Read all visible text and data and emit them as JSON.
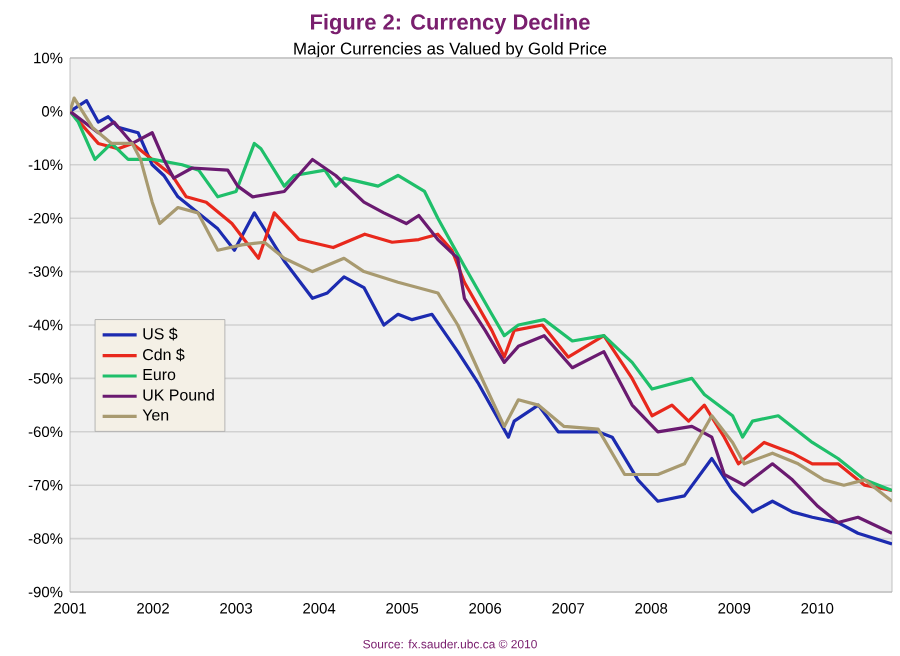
{
  "chart_data": {
    "type": "line",
    "title": "Figure 2: Currency Decline",
    "subtitle": "Major Currencies as Valued by Gold Price",
    "annotations": [
      "Source: fx.sauder.ubc.ca © 2010"
    ],
    "xlim": [
      2001,
      2010.9
    ],
    "xticks": [
      2001,
      2002,
      2003,
      2004,
      2005,
      2006,
      2007,
      2008,
      2009,
      2010
    ],
    "ylim": [
      -90,
      10
    ],
    "yticks": [
      {
        "value": -90,
        "label": "-90%"
      },
      {
        "value": -80,
        "label": "-80%"
      },
      {
        "value": -70,
        "label": "-70%"
      },
      {
        "value": -60,
        "label": "-60%"
      },
      {
        "value": -50,
        "label": "-50%"
      },
      {
        "value": -40,
        "label": "-40%"
      },
      {
        "value": -30,
        "label": "-30%"
      },
      {
        "value": -20,
        "label": "-20%"
      },
      {
        "value": -10,
        "label": "-10%"
      },
      {
        "value": 0,
        "label": "0%"
      },
      {
        "value": 10,
        "label": "10%"
      }
    ],
    "grid": "y",
    "legend": "left",
    "marker": "none",
    "line_style": "solid",
    "series": [
      {
        "name": "US $",
        "color": "#1c2bb0",
        "x": [
          2001.0,
          2001.2,
          2001.34,
          2001.46,
          2001.58,
          2001.82,
          2001.99,
          2002.13,
          2002.3,
          2002.54,
          2002.78,
          2002.98,
          2003.22,
          2003.58,
          2003.92,
          2004.1,
          2004.3,
          2004.54,
          2004.78,
          2004.95,
          2005.12,
          2005.36,
          2005.67,
          2005.92,
          2006.28,
          2006.35,
          2006.64,
          2006.88,
          2007.36,
          2007.53,
          2007.84,
          2008.08,
          2008.4,
          2008.73,
          2008.98,
          2009.22,
          2009.46,
          2009.7,
          2009.94,
          2010.25,
          2010.49,
          2010.9
        ],
        "values": [
          0,
          2,
          -2,
          -1,
          -3,
          -4,
          -10,
          -12,
          -16,
          -19,
          -22,
          -26,
          -19,
          -28,
          -35,
          -34,
          -31,
          -33,
          -40,
          -38,
          -39,
          -38,
          -45,
          -51,
          -61,
          -58,
          -55,
          -60,
          -60,
          -61,
          -69,
          -73,
          -72,
          -65,
          -71,
          -75,
          -73,
          -75,
          -76,
          -77,
          -79,
          -81
        ]
      },
      {
        "name": "Cdn $",
        "color": "#e8281c",
        "x": [
          2001.0,
          2001.34,
          2001.58,
          2001.75,
          2001.99,
          2002.23,
          2002.4,
          2002.64,
          2002.95,
          2003.27,
          2003.46,
          2003.76,
          2004.17,
          2004.55,
          2004.88,
          2005.2,
          2005.43,
          2005.6,
          2005.75,
          2006.08,
          2006.23,
          2006.35,
          2006.69,
          2007.0,
          2007.43,
          2007.77,
          2008.01,
          2008.25,
          2008.45,
          2008.64,
          2008.88,
          2009.05,
          2009.36,
          2009.7,
          2009.94,
          2010.25,
          2010.57,
          2010.9
        ],
        "values": [
          0,
          -6,
          -7,
          -6,
          -9,
          -12,
          -16,
          -17,
          -21,
          -27.5,
          -19,
          -24,
          -25.5,
          -23,
          -24.5,
          -24,
          -23,
          -26,
          -32,
          -41,
          -46,
          -41,
          -40,
          -46,
          -42,
          -50,
          -57,
          -55,
          -58,
          -55,
          -61,
          -66,
          -62,
          -64,
          -66,
          -66,
          -70,
          -71
        ]
      },
      {
        "name": "Euro",
        "color": "#1fbf6a",
        "x": [
          2001.0,
          2001.1,
          2001.3,
          2001.5,
          2001.7,
          2002.0,
          2002.35,
          2002.55,
          2002.78,
          2003.0,
          2003.22,
          2003.3,
          2003.58,
          2003.7,
          2004.07,
          2004.2,
          2004.3,
          2004.71,
          2004.95,
          2005.27,
          2005.43,
          2005.75,
          2006.08,
          2006.23,
          2006.4,
          2006.71,
          2007.05,
          2007.43,
          2007.77,
          2008.01,
          2008.49,
          2008.64,
          2008.98,
          2009.1,
          2009.22,
          2009.53,
          2009.94,
          2010.25,
          2010.57,
          2010.9
        ],
        "values": [
          0,
          -2,
          -9,
          -6,
          -9,
          -9,
          -10,
          -11,
          -16,
          -15,
          -6,
          -7,
          -14,
          -12,
          -11,
          -14,
          -12.5,
          -14,
          -12,
          -15,
          -20,
          -29,
          -38,
          -42,
          -40,
          -39,
          -43,
          -42,
          -47,
          -52,
          -50,
          -53,
          -57,
          -61,
          -58,
          -57,
          -62,
          -65,
          -69,
          -71
        ]
      },
      {
        "name": "UK Pound",
        "color": "#6a1a70",
        "x": [
          2001.0,
          2001.34,
          2001.53,
          2001.75,
          2001.99,
          2002.13,
          2002.25,
          2002.47,
          2002.9,
          2003.02,
          2003.2,
          2003.58,
          2003.92,
          2004.2,
          2004.54,
          2004.78,
          2005.05,
          2005.2,
          2005.43,
          2005.67,
          2005.75,
          2006.0,
          2006.23,
          2006.4,
          2006.71,
          2007.05,
          2007.43,
          2007.77,
          2008.08,
          2008.49,
          2008.73,
          2008.88,
          2009.12,
          2009.46,
          2009.7,
          2010.01,
          2010.25,
          2010.49,
          2010.9
        ],
        "values": [
          0,
          -4,
          -2,
          -6,
          -4,
          -9,
          -12.5,
          -10.6,
          -11,
          -14,
          -16,
          -15,
          -9,
          -12,
          -17,
          -19,
          -21,
          -19.5,
          -24,
          -27.5,
          -35,
          -41,
          -47,
          -44,
          -42,
          -48,
          -45,
          -55,
          -60,
          -59,
          -61,
          -68,
          -70,
          -66,
          -69,
          -74,
          -77,
          -76,
          -79
        ]
      },
      {
        "name": "Yen",
        "color": "#a89a70",
        "x": [
          2001.0,
          2001.05,
          2001.27,
          2001.5,
          2001.75,
          2001.85,
          2001.99,
          2002.08,
          2002.3,
          2002.54,
          2002.78,
          2003.07,
          2003.34,
          2003.58,
          2003.92,
          2004.3,
          2004.54,
          2004.95,
          2005.43,
          2005.67,
          2005.99,
          2006.23,
          2006.4,
          2006.64,
          2006.95,
          2007.36,
          2007.68,
          2008.08,
          2008.4,
          2008.73,
          2008.98,
          2009.12,
          2009.46,
          2009.77,
          2010.08,
          2010.32,
          2010.57,
          2010.9
        ],
        "values": [
          0,
          2.5,
          -3,
          -6,
          -6,
          -9,
          -17,
          -21,
          -18,
          -19,
          -26,
          -25,
          -24.5,
          -27.5,
          -30,
          -27.5,
          -30,
          -32,
          -34,
          -40,
          -51,
          -59,
          -54,
          -55,
          -59,
          -59.5,
          -68,
          -68,
          -66,
          -57,
          -62,
          -66,
          -64,
          -66,
          -69,
          -70,
          -69,
          -73
        ]
      }
    ]
  }
}
